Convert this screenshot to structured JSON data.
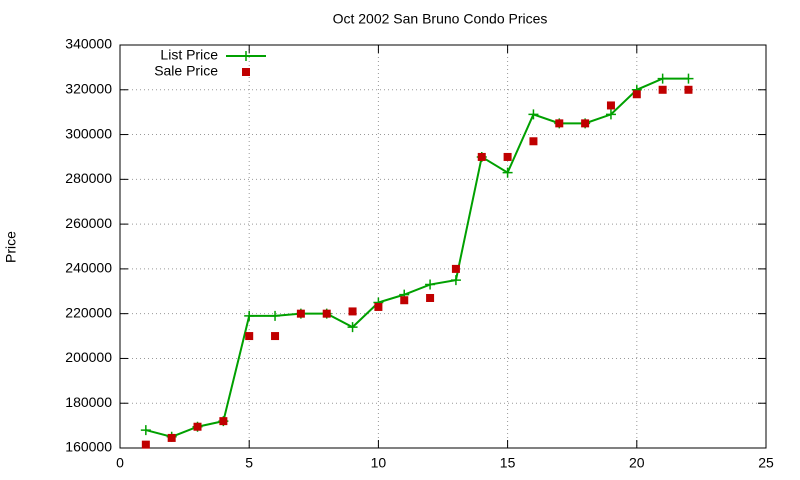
{
  "chart_data": {
    "type": "line",
    "title": "Oct 2002 San Bruno Condo Prices",
    "y_label": "Price",
    "x": [
      1,
      2,
      3,
      4,
      5,
      6,
      7,
      8,
      9,
      10,
      11,
      12,
      13,
      14,
      15,
      16,
      17,
      18,
      19,
      20,
      21,
      22
    ],
    "series": [
      {
        "name": "List Price",
        "color": "#00a000",
        "style": "linespoints",
        "values": [
          168000,
          165000,
          169500,
          172000,
          219000,
          219000,
          220000,
          220000,
          214000,
          225000,
          228500,
          233000,
          235000,
          290000,
          283000,
          309000,
          305000,
          305000,
          309000,
          320000,
          325000,
          325000
        ]
      },
      {
        "name": "Sale Price",
        "color": "#c00000",
        "style": "points",
        "values": [
          161500,
          164500,
          169500,
          172000,
          210000,
          210000,
          220000,
          220000,
          221000,
          223000,
          226000,
          227000,
          240000,
          290000,
          290000,
          297000,
          305000,
          305000,
          313000,
          318000,
          320000,
          320000
        ]
      }
    ],
    "xlim": [
      0,
      25
    ],
    "xticks": [
      0,
      5,
      10,
      15,
      20,
      25
    ],
    "ylim": [
      160000,
      340000
    ],
    "yticks": [
      160000,
      180000,
      200000,
      220000,
      240000,
      260000,
      280000,
      300000,
      320000,
      340000
    ],
    "grid": true,
    "legend": "top-left"
  }
}
